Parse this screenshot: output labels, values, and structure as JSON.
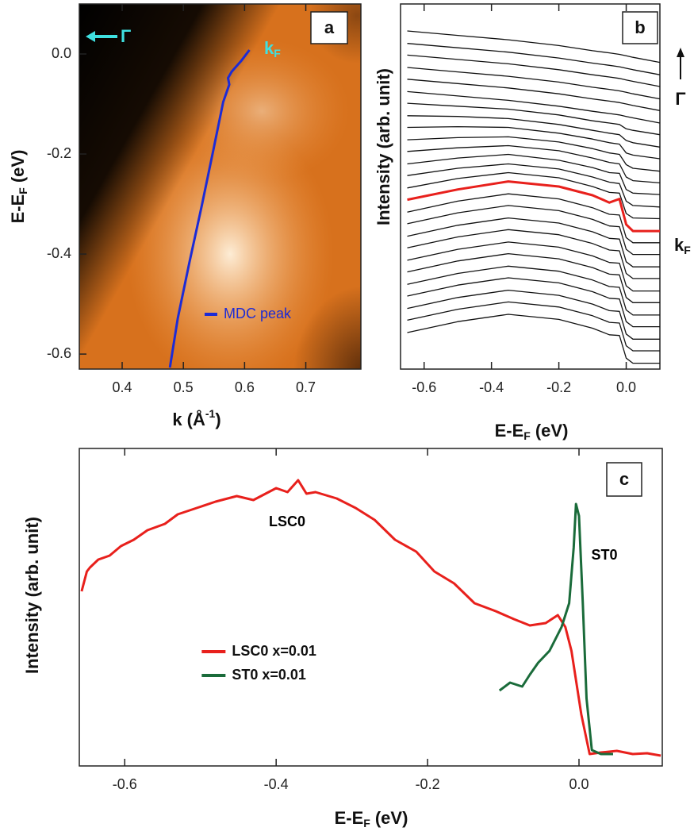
{
  "chart_data": [
    {
      "type": "line",
      "panel_label": "a",
      "xlabel": {
        "text": "k (Å",
        "sup": "-1",
        "end": ")"
      },
      "ylabel": {
        "text": "E-E",
        "sub": "F",
        "end": "(eV)"
      },
      "xlim": [
        0.33,
        0.79
      ],
      "ylim": [
        -0.63,
        0.1
      ],
      "xticks": [
        0.4,
        0.5,
        0.6,
        0.7
      ],
      "yticks": [
        {
          "value": 0,
          "label": "0.0"
        },
        -0.2,
        -0.4,
        -0.6
      ],
      "annotations": [
        {
          "text": "Γ"
        },
        {
          "text": "k",
          "sub": "F"
        }
      ],
      "legend": "lower right",
      "series": [
        {
          "name": "MDC peak",
          "color": "#1c2bd6",
          "x": [
            0.478,
            0.491,
            0.51,
            0.53,
            0.549,
            0.565,
            0.575,
            0.573,
            0.579,
            0.595,
            0.608
          ],
          "values": [
            -0.627,
            -0.528,
            -0.416,
            -0.304,
            -0.192,
            -0.096,
            -0.061,
            -0.048,
            -0.035,
            -0.013,
            0.008
          ]
        }
      ]
    },
    {
      "type": "line",
      "panel_label": "b",
      "xlabel": {
        "text": "E-E",
        "sub": "F",
        "end": "(eV)"
      },
      "ylabel": {
        "text": "Intensity (arb. unit)"
      },
      "xlim": [
        -0.67,
        0.1
      ],
      "ylim": [
        -3,
        47
      ],
      "xticks": [
        -0.6,
        -0.4,
        -0.2,
        {
          "value": 0,
          "label": "0.0"
        }
      ],
      "annotations": [
        {
          "text": "Γ"
        },
        {
          "text": "k",
          "sub": "F"
        }
      ],
      "x": [
        -0.65,
        -0.5,
        -0.35,
        -0.2,
        -0.1,
        -0.05,
        -0.02,
        0.0,
        0.02,
        0.1
      ],
      "series": [
        {
          "color": "#111111",
          "values": [
            2.0,
            3.5,
            4.5,
            3.8,
            2.6,
            1.7,
            1.6,
            -1.5,
            -2.2,
            -2.2
          ]
        },
        {
          "color": "#111111",
          "values": [
            3.7,
            5.2,
            6.2,
            5.5,
            4.3,
            3.4,
            3.3,
            0.2,
            -0.5,
            -0.5
          ]
        },
        {
          "color": "#111111",
          "values": [
            5.3,
            6.8,
            7.8,
            7.1,
            5.9,
            5.0,
            4.9,
            1.8,
            1.1,
            1.1
          ]
        },
        {
          "color": "#111111",
          "values": [
            7.0,
            8.5,
            9.5,
            8.8,
            7.6,
            6.7,
            6.6,
            3.5,
            2.8,
            2.8
          ]
        },
        {
          "color": "#111111",
          "values": [
            8.6,
            10.1,
            11.1,
            10.4,
            9.2,
            8.3,
            8.2,
            5.1,
            4.4,
            4.4
          ]
        },
        {
          "color": "#111111",
          "values": [
            10.3,
            11.8,
            12.8,
            12.1,
            10.9,
            10.0,
            9.9,
            6.8,
            6.1,
            6.1
          ]
        },
        {
          "color": "#111111",
          "values": [
            11.9,
            13.4,
            14.4,
            13.7,
            12.5,
            11.6,
            11.5,
            8.4,
            7.7,
            7.7
          ]
        },
        {
          "color": "#111111",
          "values": [
            13.6,
            15.1,
            16.1,
            15.4,
            14.2,
            13.3,
            13.2,
            10.1,
            9.4,
            9.4
          ]
        },
        {
          "color": "#111111",
          "values": [
            15.2,
            16.7,
            17.7,
            17.0,
            15.8,
            14.9,
            14.8,
            11.7,
            11.0,
            11.0
          ]
        },
        {
          "color": "#111111",
          "values": [
            16.9,
            18.4,
            19.4,
            18.7,
            17.5,
            16.6,
            16.5,
            13.4,
            12.7,
            12.7
          ]
        },
        {
          "color": "#111111",
          "values": [
            18.5,
            20.0,
            21.0,
            20.3,
            19.1,
            18.2,
            18.1,
            15.0,
            14.3,
            14.3
          ]
        },
        {
          "color": "#e8201c",
          "values": [
            20.2,
            21.6,
            22.7,
            22.0,
            20.8,
            19.8,
            20.3,
            16.8,
            15.9,
            15.9
          ]
        },
        {
          "color": "#111111",
          "values": [
            21.8,
            23.1,
            23.9,
            23.2,
            22.0,
            21.2,
            21.1,
            18.3,
            17.7,
            17.6
          ]
        },
        {
          "color": "#111111",
          "values": [
            23.5,
            24.5,
            25.1,
            24.4,
            23.3,
            22.6,
            22.4,
            20.0,
            19.4,
            19.2
          ]
        },
        {
          "color": "#111111",
          "values": [
            25.1,
            25.9,
            26.4,
            25.6,
            24.6,
            23.9,
            23.8,
            21.6,
            21.1,
            20.9
          ]
        },
        {
          "color": "#111111",
          "values": [
            26.8,
            27.3,
            27.6,
            26.9,
            25.9,
            25.3,
            25.1,
            23.3,
            22.8,
            22.5
          ]
        },
        {
          "color": "#111111",
          "values": [
            28.4,
            28.7,
            28.8,
            28.1,
            27.2,
            26.6,
            26.4,
            25.0,
            24.5,
            24.1
          ]
        },
        {
          "color": "#111111",
          "values": [
            30.1,
            30.2,
            30.1,
            29.3,
            28.5,
            28.0,
            27.8,
            26.6,
            26.3,
            25.8
          ]
        },
        {
          "color": "#111111",
          "values": [
            31.7,
            31.6,
            31.3,
            30.5,
            29.7,
            29.3,
            29.1,
            28.3,
            28.0,
            27.4
          ]
        },
        {
          "color": "#111111",
          "values": [
            33.4,
            33.0,
            32.6,
            31.8,
            31.0,
            30.7,
            30.5,
            29.9,
            29.7,
            29.1
          ]
        },
        {
          "color": "#111111",
          "values": [
            35.0,
            34.4,
            33.8,
            33.0,
            32.3,
            32.0,
            31.8,
            31.6,
            31.4,
            30.7
          ]
        },
        {
          "color": "#111111",
          "values": [
            36.7,
            36.1,
            35.5,
            34.7,
            34.0,
            33.7,
            33.5,
            33.3,
            33.1,
            32.4
          ]
        },
        {
          "color": "#111111",
          "values": [
            38.3,
            37.7,
            37.1,
            36.3,
            35.6,
            35.3,
            35.1,
            34.9,
            34.7,
            34.0
          ]
        },
        {
          "color": "#111111",
          "values": [
            40.0,
            39.4,
            38.8,
            38.0,
            37.3,
            37.0,
            36.8,
            36.6,
            36.4,
            35.7
          ]
        },
        {
          "color": "#111111",
          "values": [
            41.6,
            41.0,
            40.4,
            39.6,
            38.9,
            38.6,
            38.4,
            38.2,
            38.0,
            37.3
          ]
        },
        {
          "color": "#111111",
          "values": [
            43.3,
            42.7,
            42.1,
            41.3,
            40.6,
            40.3,
            40.1,
            39.9,
            39.7,
            39.0
          ]
        }
      ]
    },
    {
      "type": "line",
      "panel_label": "c",
      "xlabel": {
        "text": "E-E",
        "sub": "F",
        "end": "(eV)"
      },
      "ylabel": {
        "text": "Intensity (arb. unit)"
      },
      "xlim": [
        -0.66,
        0.11
      ],
      "ylim": [
        -0.15,
        3.85
      ],
      "xticks": [
        -0.6,
        -0.4,
        -0.2,
        {
          "value": 0,
          "label": "0.0"
        }
      ],
      "annotations": [
        {
          "text": "LSC0"
        },
        {
          "text": "ST0"
        }
      ],
      "legend": "center left",
      "series": [
        {
          "name": "LSC0 x=0.01",
          "color": "#e8201c",
          "x": [
            -0.657,
            -0.65,
            -0.646,
            -0.635,
            -0.62,
            -0.605,
            -0.588,
            -0.57,
            -0.547,
            -0.53,
            -0.505,
            -0.48,
            -0.452,
            -0.43,
            -0.4,
            -0.385,
            -0.371,
            -0.36,
            -0.348,
            -0.32,
            -0.295,
            -0.27,
            -0.243,
            -0.215,
            -0.191,
            -0.165,
            -0.138,
            -0.11,
            -0.086,
            -0.065,
            -0.044,
            -0.028,
            -0.018,
            -0.01,
            0.003,
            0.014,
            0.029,
            0.05,
            0.071,
            0.09,
            0.108
          ],
          "values": [
            2.05,
            2.3,
            2.35,
            2.45,
            2.5,
            2.62,
            2.7,
            2.82,
            2.9,
            3.02,
            3.1,
            3.18,
            3.25,
            3.2,
            3.35,
            3.3,
            3.45,
            3.28,
            3.3,
            3.22,
            3.1,
            2.95,
            2.7,
            2.55,
            2.3,
            2.15,
            1.9,
            1.8,
            1.7,
            1.62,
            1.65,
            1.75,
            1.6,
            1.3,
            0.5,
            0.0,
            0.02,
            0.04,
            0.0,
            0.01,
            -0.02
          ]
        },
        {
          "name": "ST0 x=0.01",
          "color": "#1a6b3a",
          "x": [
            -0.105,
            -0.091,
            -0.075,
            -0.065,
            -0.054,
            -0.039,
            -0.023,
            -0.013,
            -0.007,
            -0.004,
            0.0,
            0.005,
            0.01,
            0.017,
            0.029,
            0.045
          ],
          "values": [
            0.8,
            0.9,
            0.85,
            1.0,
            1.15,
            1.3,
            1.6,
            1.9,
            2.6,
            3.15,
            3.0,
            1.9,
            0.7,
            0.05,
            0.0,
            0.0
          ]
        }
      ]
    }
  ]
}
